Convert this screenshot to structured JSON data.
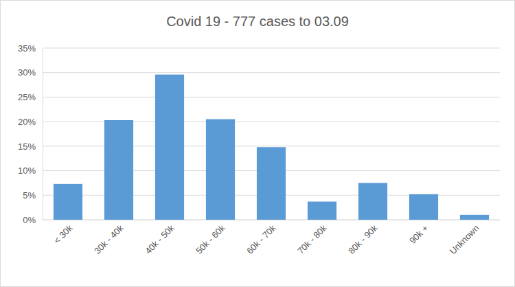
{
  "chart_data": {
    "type": "bar",
    "title": "Covid 19 - 777 cases to 03.09",
    "categories": [
      "< 30k",
      "30k - 40k",
      "40k - 50k",
      "50k - 60k",
      "60k - 70k",
      "70k - 80k",
      "80k - 90k",
      "90k +",
      "Unknown"
    ],
    "values": [
      7.3,
      20.3,
      29.6,
      20.5,
      14.8,
      3.7,
      7.5,
      5.2,
      1.0
    ],
    "color": "#5b9bd5",
    "ylim": [
      0,
      35
    ],
    "yticks": [
      {
        "value": 0,
        "label": "0%"
      },
      {
        "value": 5,
        "label": "5%"
      },
      {
        "value": 10,
        "label": "10%"
      },
      {
        "value": 15,
        "label": "15%"
      },
      {
        "value": 20,
        "label": "20%"
      },
      {
        "value": 25,
        "label": "25%"
      },
      {
        "value": 30,
        "label": "30%"
      },
      {
        "value": 35,
        "label": "35%"
      }
    ],
    "grid": true
  }
}
